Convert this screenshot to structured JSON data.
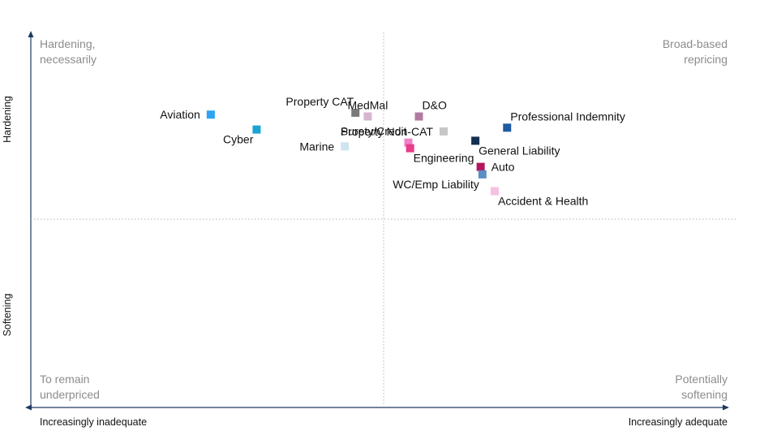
{
  "chart_data": {
    "type": "scatter",
    "title": "",
    "y_axis": {
      "top_label": "Hardening",
      "bottom_label": "Softening",
      "ylim": [
        -10,
        10
      ]
    },
    "x_axis": {
      "left_label": "Increasingly inadequate",
      "right_label": "Increasingly adequate",
      "xlim": [
        -10,
        10
      ]
    },
    "grid": false,
    "quadrants": {
      "top_left": [
        "Hardening,",
        "necessarily"
      ],
      "top_right": [
        "Broad-based",
        "repricing"
      ],
      "bottom_left": [
        "To remain",
        "underpriced"
      ],
      "bottom_right": [
        "Potentially",
        "softening"
      ]
    },
    "points": [
      {
        "name": "Aviation",
        "x": -4.9,
        "y": 5.6,
        "color": "#2ea3f2",
        "label_pos": "left"
      },
      {
        "name": "Cyber",
        "x": -3.6,
        "y": 4.8,
        "color": "#1aa3d5",
        "label_pos": "below-left"
      },
      {
        "name": "Property CAT",
        "x": -0.8,
        "y": 5.7,
        "color": "#7a7a7a",
        "label_pos": "above-left"
      },
      {
        "name": "MedMal",
        "x": -0.45,
        "y": 5.5,
        "color": "#d7b5cf",
        "label_pos": "above"
      },
      {
        "name": "D&O",
        "x": 1.0,
        "y": 5.5,
        "color": "#b07aa1",
        "label_pos": "above-right"
      },
      {
        "name": "Property Non-CAT",
        "x": 1.7,
        "y": 4.7,
        "color": "#c6c6c6",
        "label_pos": "left"
      },
      {
        "name": "Professional Indemnity",
        "x": 3.5,
        "y": 4.9,
        "color": "#1f5aa3",
        "label_pos": "above-right"
      },
      {
        "name": "Surety/Credit",
        "x": 0.7,
        "y": 4.1,
        "color": "#f07fc8",
        "label_pos": "above-left"
      },
      {
        "name": "Engineering",
        "x": 0.75,
        "y": 3.8,
        "color": "#ea3b8c",
        "label_pos": "below-right"
      },
      {
        "name": "Marine",
        "x": -1.1,
        "y": 3.9,
        "color": "#cfe4f2",
        "label_pos": "left"
      },
      {
        "name": "General Liability",
        "x": 2.6,
        "y": 4.2,
        "color": "#132f4f",
        "label_pos": "below-right"
      },
      {
        "name": "Auto",
        "x": 2.75,
        "y": 2.8,
        "color": "#b3155e",
        "label_pos": "right"
      },
      {
        "name": "WC/Emp Liability",
        "x": 2.8,
        "y": 2.4,
        "color": "#5b8fc4",
        "label_pos": "below-left"
      },
      {
        "name": "Accident & Health",
        "x": 3.15,
        "y": 1.5,
        "color": "#f6c1df",
        "label_pos": "below-right"
      }
    ]
  }
}
